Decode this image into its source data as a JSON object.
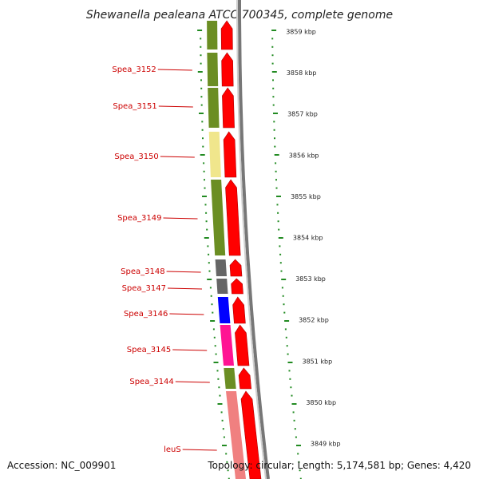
{
  "title": "Shewanella pealeana ATCC 700345, complete genome",
  "accession_text": "Accession: NC_009901",
  "summary_text": "Topology: circular; Length: 5,174,581 bp; Genes: 4,420",
  "colors": {
    "forward_arrow": "#ff0000",
    "backbone": "#888888",
    "tick": "#228b22",
    "label": "#cc0000"
  },
  "kbp_labels": [
    "3859 kbp",
    "3858 kbp",
    "3857 kbp",
    "3856 kbp",
    "3855 kbp",
    "3854 kbp",
    "3853 kbp",
    "3852 kbp",
    "3851 kbp",
    "3850 kbp",
    "3849 kbp"
  ],
  "genes": [
    {
      "name": "",
      "color": "#6b8e23"
    },
    {
      "name": "Spea_3152",
      "color": "#6b8e23"
    },
    {
      "name": "Spea_3151",
      "color": "#6b8e23"
    },
    {
      "name": "Spea_3150",
      "color": "#f0e68c"
    },
    {
      "name": "Spea_3149",
      "color": "#6b8e23"
    },
    {
      "name": "Spea_3148",
      "color": "#666666"
    },
    {
      "name": "Spea_3147",
      "color": "#666666"
    },
    {
      "name": "Spea_3146",
      "color": "#0000ff"
    },
    {
      "name": "Spea_3145",
      "color": "#ff1493"
    },
    {
      "name": "Spea_3144",
      "color": "#6b8e23"
    },
    {
      "name": "leuS",
      "color": "#f08080"
    }
  ]
}
